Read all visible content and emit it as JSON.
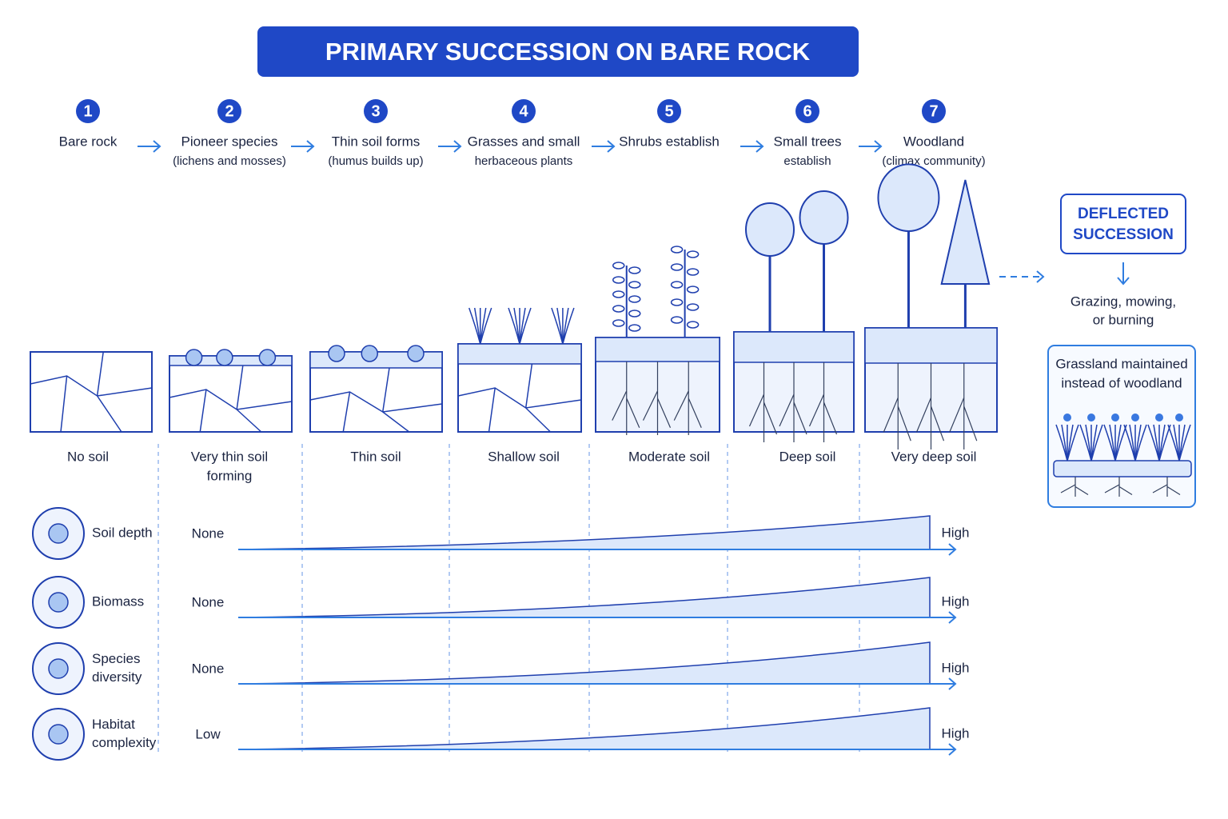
{
  "header": {
    "title": "PRIMARY SUCCESSION ON BARE ROCK"
  },
  "stages": [
    {
      "number": "1",
      "label": [
        "Bare rock"
      ],
      "soil": [
        "No soil"
      ]
    },
    {
      "number": "2",
      "label": [
        "Pioneer species",
        "(lichens and mosses)"
      ],
      "soil": [
        "Very thin soil",
        "forming"
      ]
    },
    {
      "number": "3",
      "label": [
        "Thin soil forms",
        "(humus builds up)"
      ],
      "soil": [
        "Thin soil"
      ]
    },
    {
      "number": "4",
      "label": [
        "Grasses and small",
        "herbaceous plants"
      ],
      "soil": [
        "Shallow soil"
      ]
    },
    {
      "number": "5",
      "label": [
        "Shrubs establish"
      ],
      "soil": [
        "Moderate soil"
      ]
    },
    {
      "number": "6",
      "label": [
        "Small trees",
        "establish"
      ],
      "soil": [
        "Deep soil"
      ]
    },
    {
      "number": "7",
      "label": [
        "Woodland",
        "(climax community)"
      ],
      "soil": [
        "Very deep soil"
      ]
    }
  ],
  "deflected": {
    "title": [
      "DEFLECTED",
      "SUCCESSION"
    ],
    "cause": [
      "Grazing, mowing,",
      "or burning"
    ],
    "result": [
      "Grassland maintained",
      "instead of woodland"
    ]
  },
  "trends": [
    {
      "label": [
        "Soil depth"
      ],
      "start": "None",
      "end": "High"
    },
    {
      "label": [
        "Biomass"
      ],
      "start": "None",
      "end": "High"
    },
    {
      "label": [
        "Species",
        "diversity"
      ],
      "start": "None",
      "end": "High"
    },
    {
      "label": [
        "Habitat",
        "complexity"
      ],
      "start": "Low",
      "end": "High"
    }
  ]
}
